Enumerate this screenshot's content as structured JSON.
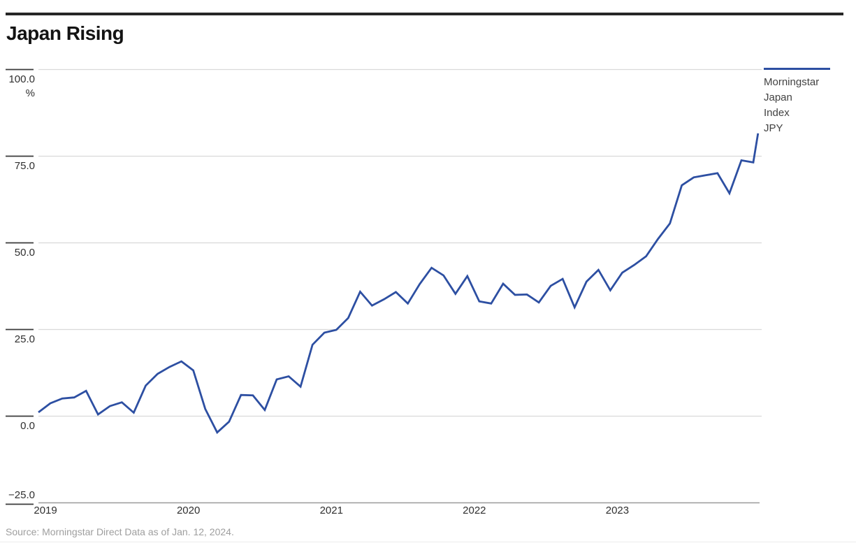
{
  "page": {
    "title": "Japan Rising",
    "source": "Source: Morningstar Direct Data as of Jan. 12, 2024."
  },
  "legend": {
    "lines": [
      "Morningstar",
      "Japan",
      "Index",
      "JPY"
    ]
  },
  "colors": {
    "line": "#2d4fa2",
    "grid": "#d9d9d9",
    "axis": "#9a9a9a",
    "tick": "#3a3a3a",
    "text": "#2f2f2f",
    "muted": "#9e9e9e",
    "rule": "#262626"
  },
  "chart_data": {
    "type": "line",
    "title": "Japan Rising",
    "xlabel": "",
    "ylabel": "%",
    "unit": "%",
    "grid": "horizontal",
    "legend_position": "top-right",
    "ylim": [
      -25,
      100
    ],
    "yticks": [
      100,
      75,
      50,
      25,
      0,
      -25
    ],
    "ytick_labels": [
      "100.0",
      "75.0",
      "50.0",
      "25.0",
      "0.0",
      "−25.0"
    ],
    "x_start": "Dec 2018",
    "x_end": "Jan 12, 2024",
    "x_frequency": "monthly",
    "last_point_month_fraction": 60.4,
    "xticks": [
      {
        "label": "2019",
        "month_index": 1
      },
      {
        "label": "2020",
        "month_index": 13
      },
      {
        "label": "2021",
        "month_index": 25
      },
      {
        "label": "2022",
        "month_index": 37
      },
      {
        "label": "2023",
        "month_index": 49
      }
    ],
    "series": [
      {
        "name": "Morningstar Japan Index JPY",
        "color": "#2d4fa2",
        "values": [
          1.0,
          3.6,
          5.0,
          5.3,
          7.2,
          0.4,
          2.8,
          3.9,
          0.9,
          8.7,
          12.1,
          14.1,
          15.7,
          13.1,
          2.0,
          -4.8,
          -1.7,
          6.0,
          5.9,
          1.7,
          10.5,
          11.4,
          8.4,
          20.5,
          24.0,
          24.8,
          28.2,
          35.8,
          31.8,
          33.6,
          35.7,
          32.4,
          38.0,
          42.7,
          40.5,
          35.2,
          40.3,
          33.0,
          32.4,
          38.1,
          34.9,
          35.0,
          32.7,
          37.5,
          39.5,
          31.3,
          38.7,
          42.1,
          36.2,
          41.3,
          43.5,
          46.0,
          51.0,
          55.5,
          66.5,
          68.8,
          69.4,
          70.0,
          64.2,
          73.7,
          73.1,
          81.5
        ]
      }
    ]
  }
}
